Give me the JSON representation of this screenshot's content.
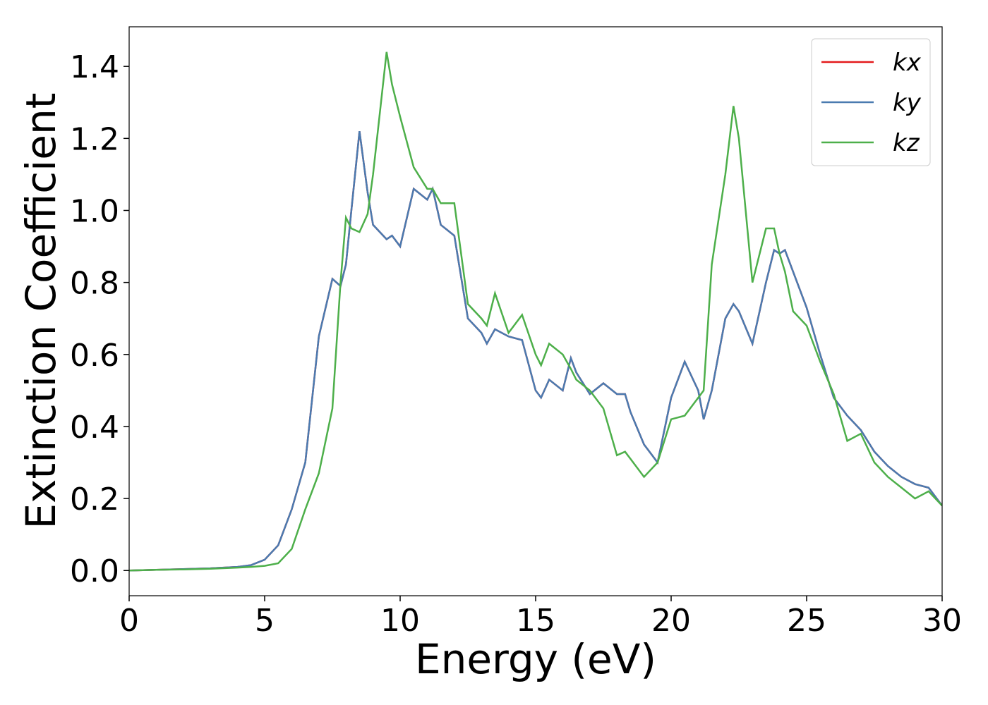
{
  "chart_data": {
    "type": "line",
    "xlabel": "Energy (eV)",
    "ylabel": "Extinction Coefficient",
    "x": [
      0,
      1,
      2,
      3,
      4,
      4.5,
      5,
      5.5,
      6,
      6.5,
      7,
      7.5,
      7.8,
      8.0,
      8.2,
      8.5,
      8.8,
      9.0,
      9.5,
      9.7,
      10.0,
      10.5,
      11.0,
      11.2,
      11.5,
      12,
      12.5,
      13,
      13.2,
      13.5,
      14,
      14.5,
      15,
      15.2,
      15.5,
      16,
      16.3,
      16.5,
      17,
      17.5,
      18,
      18.3,
      18.5,
      19,
      19.5,
      20,
      20.5,
      21,
      21.2,
      21.5,
      22,
      22.3,
      22.5,
      23,
      23.5,
      23.8,
      24,
      24.2,
      24.5,
      25,
      25.5,
      26,
      26.5,
      27,
      27.5,
      28,
      28.5,
      29,
      29.5,
      30
    ],
    "series": [
      {
        "name": "kx",
        "color": "#e41a1c",
        "values": [
          0,
          0.002,
          0.004,
          0.006,
          0.01,
          0.015,
          0.03,
          0.07,
          0.17,
          0.3,
          0.65,
          0.81,
          0.79,
          0.85,
          1.0,
          1.22,
          1.05,
          0.96,
          0.92,
          0.93,
          0.9,
          1.06,
          1.03,
          1.06,
          0.96,
          0.93,
          0.7,
          0.66,
          0.63,
          0.67,
          0.65,
          0.64,
          0.5,
          0.48,
          0.53,
          0.5,
          0.59,
          0.55,
          0.49,
          0.52,
          0.49,
          0.49,
          0.44,
          0.35,
          0.3,
          0.48,
          0.58,
          0.5,
          0.42,
          0.5,
          0.7,
          0.74,
          0.72,
          0.63,
          0.8,
          0.89,
          0.88,
          0.89,
          0.83,
          0.73,
          0.6,
          0.48,
          0.43,
          0.39,
          0.33,
          0.29,
          0.26,
          0.24,
          0.23,
          0.18
        ]
      },
      {
        "name": "ky",
        "color": "#4a7bb0",
        "values": [
          0,
          0.002,
          0.004,
          0.006,
          0.01,
          0.015,
          0.03,
          0.07,
          0.17,
          0.3,
          0.65,
          0.81,
          0.79,
          0.85,
          1.0,
          1.22,
          1.05,
          0.96,
          0.92,
          0.93,
          0.9,
          1.06,
          1.03,
          1.06,
          0.96,
          0.93,
          0.7,
          0.66,
          0.63,
          0.67,
          0.65,
          0.64,
          0.5,
          0.48,
          0.53,
          0.5,
          0.59,
          0.55,
          0.49,
          0.52,
          0.49,
          0.49,
          0.44,
          0.35,
          0.3,
          0.48,
          0.58,
          0.5,
          0.42,
          0.5,
          0.7,
          0.74,
          0.72,
          0.63,
          0.8,
          0.89,
          0.88,
          0.89,
          0.83,
          0.73,
          0.6,
          0.48,
          0.43,
          0.39,
          0.33,
          0.29,
          0.26,
          0.24,
          0.23,
          0.18
        ]
      },
      {
        "name": "kz",
        "color": "#4daf4a",
        "values": [
          0,
          0.002,
          0.003,
          0.005,
          0.008,
          0.01,
          0.013,
          0.02,
          0.06,
          0.17,
          0.27,
          0.45,
          0.8,
          0.98,
          0.95,
          0.94,
          0.99,
          1.1,
          1.44,
          1.35,
          1.26,
          1.12,
          1.06,
          1.06,
          1.02,
          1.02,
          0.74,
          0.7,
          0.68,
          0.77,
          0.66,
          0.71,
          0.6,
          0.57,
          0.63,
          0.6,
          0.56,
          0.53,
          0.5,
          0.45,
          0.32,
          0.33,
          0.31,
          0.26,
          0.3,
          0.42,
          0.43,
          0.48,
          0.5,
          0.85,
          1.1,
          1.29,
          1.2,
          0.8,
          0.95,
          0.95,
          0.88,
          0.83,
          0.72,
          0.68,
          0.58,
          0.49,
          0.36,
          0.38,
          0.3,
          0.26,
          0.23,
          0.2,
          0.22,
          0.18
        ]
      }
    ],
    "xlim": [
      0,
      30
    ],
    "xticks": [
      0,
      5,
      10,
      15,
      20,
      25,
      30
    ],
    "ylim": [
      -0.07,
      1.51
    ],
    "yticks": [
      {
        "value": 0,
        "label": "0.0"
      },
      0.2,
      0.4,
      0.6,
      0.8,
      {
        "value": 1,
        "label": "1.0"
      },
      1.2,
      1.4
    ],
    "legend": "upper right"
  }
}
